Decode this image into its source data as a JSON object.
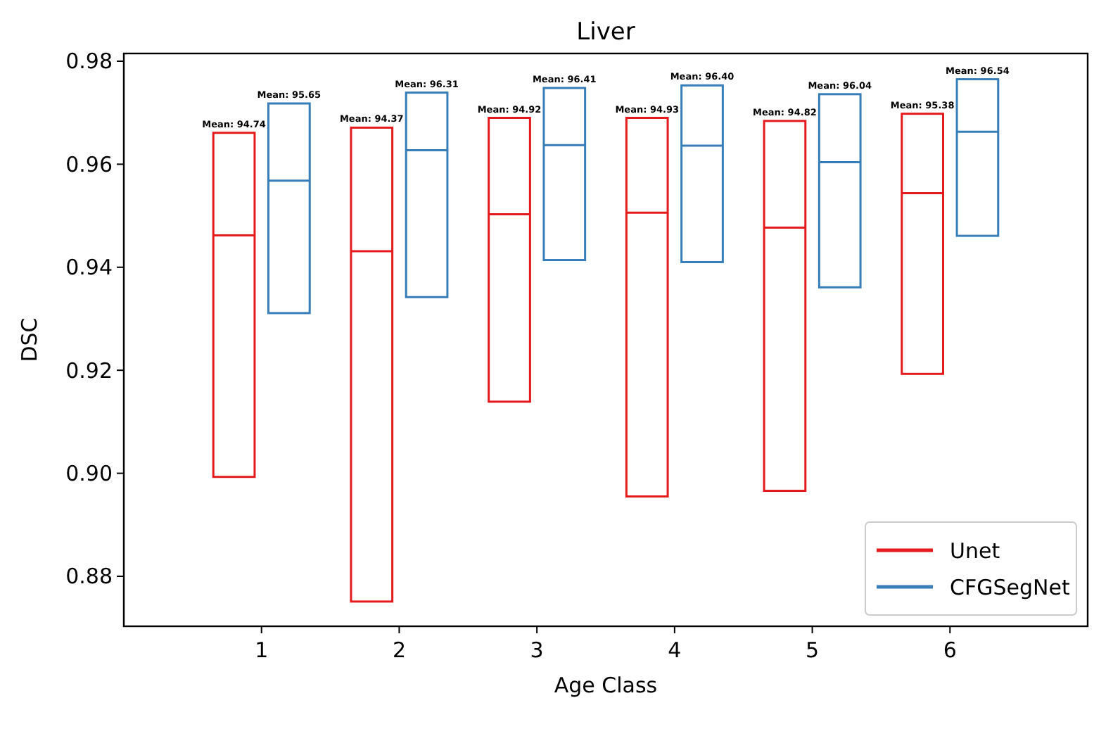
{
  "chart_data": {
    "type": "box",
    "title": "Liver",
    "xlabel": "Age Class",
    "ylabel": "DSC",
    "categories": [
      "1",
      "2",
      "3",
      "4",
      "5",
      "6"
    ],
    "ylim": [
      0.8703,
      0.9815
    ],
    "yticks": [
      {
        "value": 0.88,
        "label": "0.88"
      },
      {
        "value": 0.9,
        "label": "0.90"
      },
      {
        "value": 0.92,
        "label": "0.92"
      },
      {
        "value": 0.94,
        "label": "0.94"
      },
      {
        "value": 0.96,
        "label": "0.96"
      },
      {
        "value": 0.98,
        "label": "0.98"
      }
    ],
    "legend": "bottom right",
    "grid": false,
    "series": [
      {
        "name": "Unet",
        "color": "#e41a1c",
        "boxes": [
          {
            "low": 0.8993,
            "q1": 0.8993,
            "median": 0.9462,
            "q3": 0.9661,
            "high": 0.9661
          },
          {
            "low": 0.8751,
            "q1": 0.8751,
            "median": 0.9431,
            "q3": 0.9671,
            "high": 0.9671
          },
          {
            "low": 0.9139,
            "q1": 0.9139,
            "median": 0.9503,
            "q3": 0.969,
            "high": 0.969
          },
          {
            "low": 0.8955,
            "q1": 0.8955,
            "median": 0.9506,
            "q3": 0.969,
            "high": 0.969
          },
          {
            "low": 0.8966,
            "q1": 0.8966,
            "median": 0.9477,
            "q3": 0.9684,
            "high": 0.9684
          },
          {
            "low": 0.9193,
            "q1": 0.9193,
            "median": 0.9544,
            "q3": 0.9698,
            "high": 0.9698
          }
        ]
      },
      {
        "name": "CFGSegNet",
        "color": "#377eb8",
        "boxes": [
          {
            "low": 0.9311,
            "q1": 0.9311,
            "median": 0.9568,
            "q3": 0.9718,
            "high": 0.9718
          },
          {
            "low": 0.9342,
            "q1": 0.9342,
            "median": 0.9627,
            "q3": 0.9739,
            "high": 0.9739
          },
          {
            "low": 0.9414,
            "q1": 0.9414,
            "median": 0.9637,
            "q3": 0.9748,
            "high": 0.9748
          },
          {
            "low": 0.941,
            "q1": 0.941,
            "median": 0.9636,
            "q3": 0.9753,
            "high": 0.9753
          },
          {
            "low": 0.9361,
            "q1": 0.9361,
            "median": 0.9604,
            "q3": 0.9736,
            "high": 0.9736
          },
          {
            "low": 0.9461,
            "q1": 0.9461,
            "median": 0.9663,
            "q3": 0.9765,
            "high": 0.9765
          }
        ]
      }
    ],
    "annotations": [
      {
        "text": "Mean: 94.74",
        "x": "1",
        "y": 0.9661
      },
      {
        "text": "Mean: 95.65",
        "x": "1",
        "y": 0.9718
      },
      {
        "text": "Mean: 94.37",
        "x": "2",
        "y": 0.9671
      },
      {
        "text": "Mean: 96.31",
        "x": "2",
        "y": 0.9739
      },
      {
        "text": "Mean: 94.92",
        "x": "3",
        "y": 0.969
      },
      {
        "text": "Mean: 96.41",
        "x": "3",
        "y": 0.9748
      },
      {
        "text": "Mean: 94.93",
        "x": "4",
        "y": 0.969
      },
      {
        "text": "Mean: 96.40",
        "x": "4",
        "y": 0.9753
      },
      {
        "text": "Mean: 94.82",
        "x": "5",
        "y": 0.9684
      },
      {
        "text": "Mean: 96.04",
        "x": "5",
        "y": 0.9736
      },
      {
        "text": "Mean: 95.38",
        "x": "6",
        "y": 0.9698
      },
      {
        "text": "Mean: 96.54",
        "x": "6",
        "y": 0.9765
      }
    ]
  }
}
